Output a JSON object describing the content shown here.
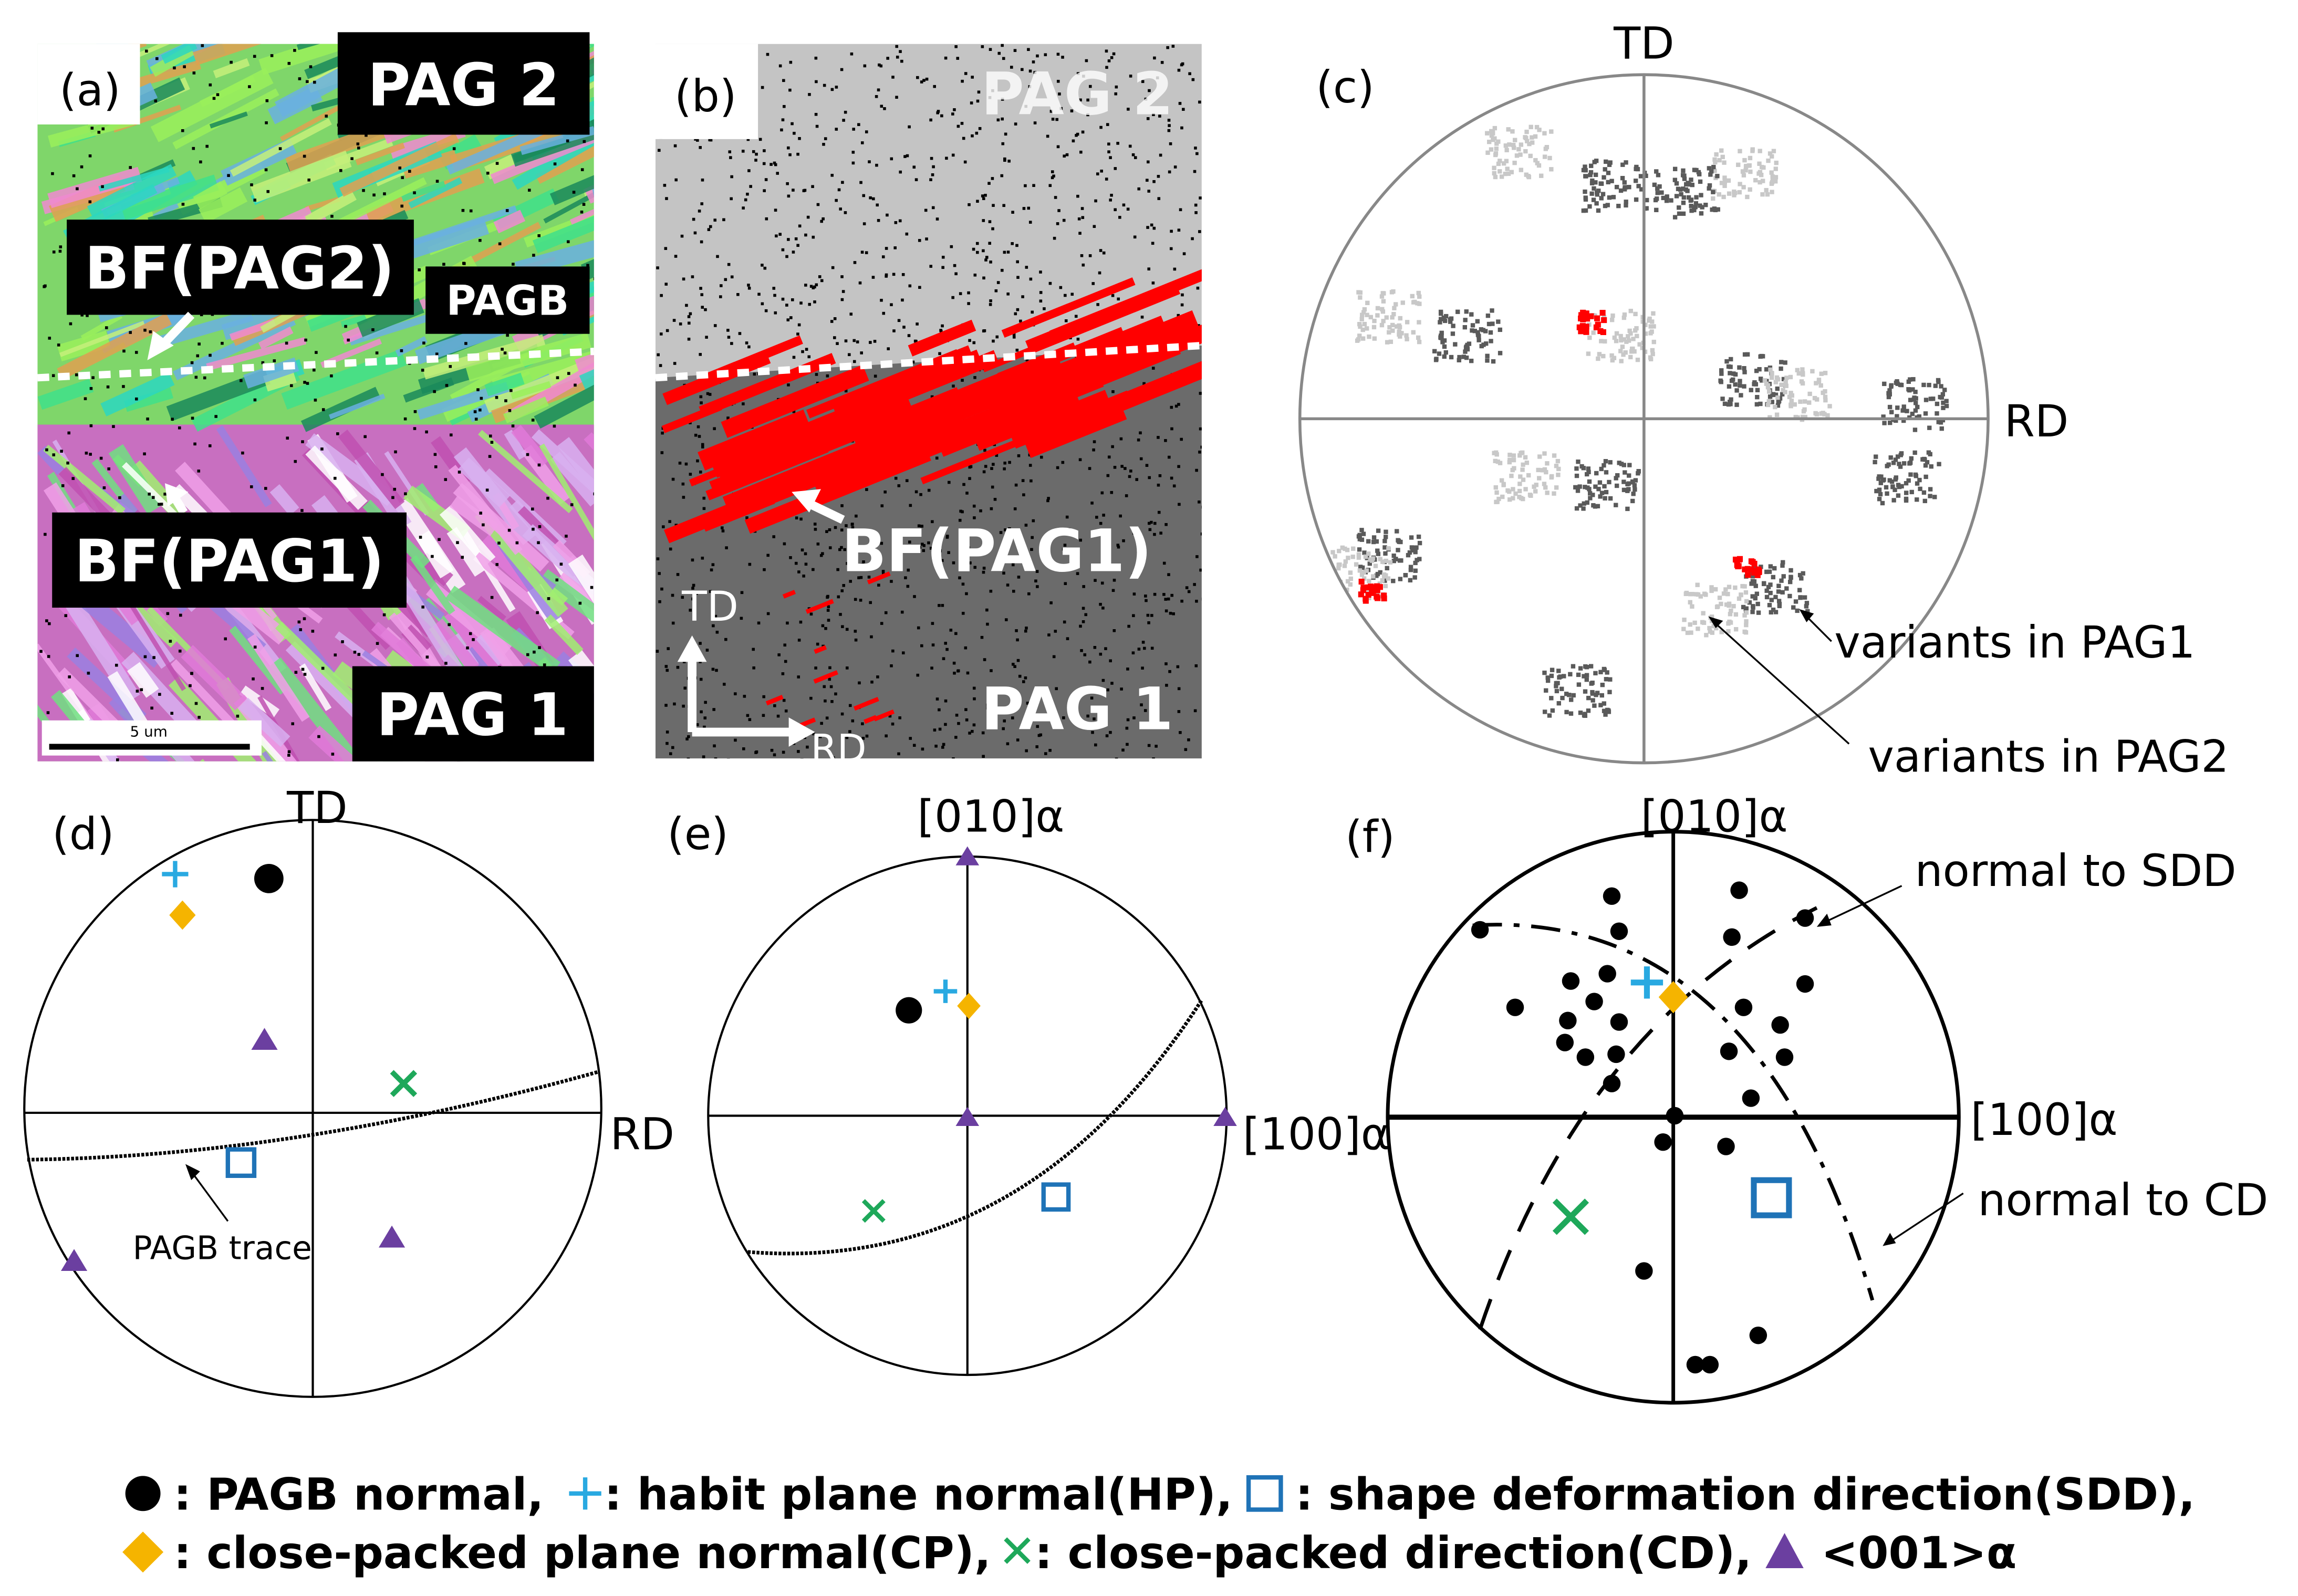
{
  "panels": {
    "a": {
      "label": "(a)",
      "tags": [
        "PAG 2",
        "BF(PAG2)",
        "PAGB",
        "BF(PAG1)",
        "PAG 1"
      ],
      "scale_bar": "5 um"
    },
    "b": {
      "label": "(b)",
      "tags": [
        "PAG 2",
        "BF(PAG1)",
        "PAG 1"
      ],
      "axes": [
        "TD",
        "RD"
      ]
    },
    "c": {
      "label": "(c)",
      "axes": [
        "TD",
        "RD"
      ],
      "annotations": [
        "variants in PAG1",
        "variants in PAG2"
      ]
    },
    "d": {
      "label": "(d)",
      "axes": [
        "TD",
        "RD"
      ],
      "annotations": [
        "PAGB trace"
      ]
    },
    "e": {
      "label": "(e)",
      "axes": [
        "[010]α",
        "[100]α"
      ]
    },
    "f": {
      "label": "(f)",
      "axes": [
        "[010]α",
        "[100]α"
      ],
      "annotations": [
        "normal to SDD",
        "normal to CD"
      ]
    }
  },
  "legend": [
    ": PAGB normal,",
    ":  habit plane normal(HP),",
    ": shape deformation direction(SDD),",
    ": close-packed plane normal(CP),",
    ": close-packed direction(CD),",
    "<001>α"
  ]
}
